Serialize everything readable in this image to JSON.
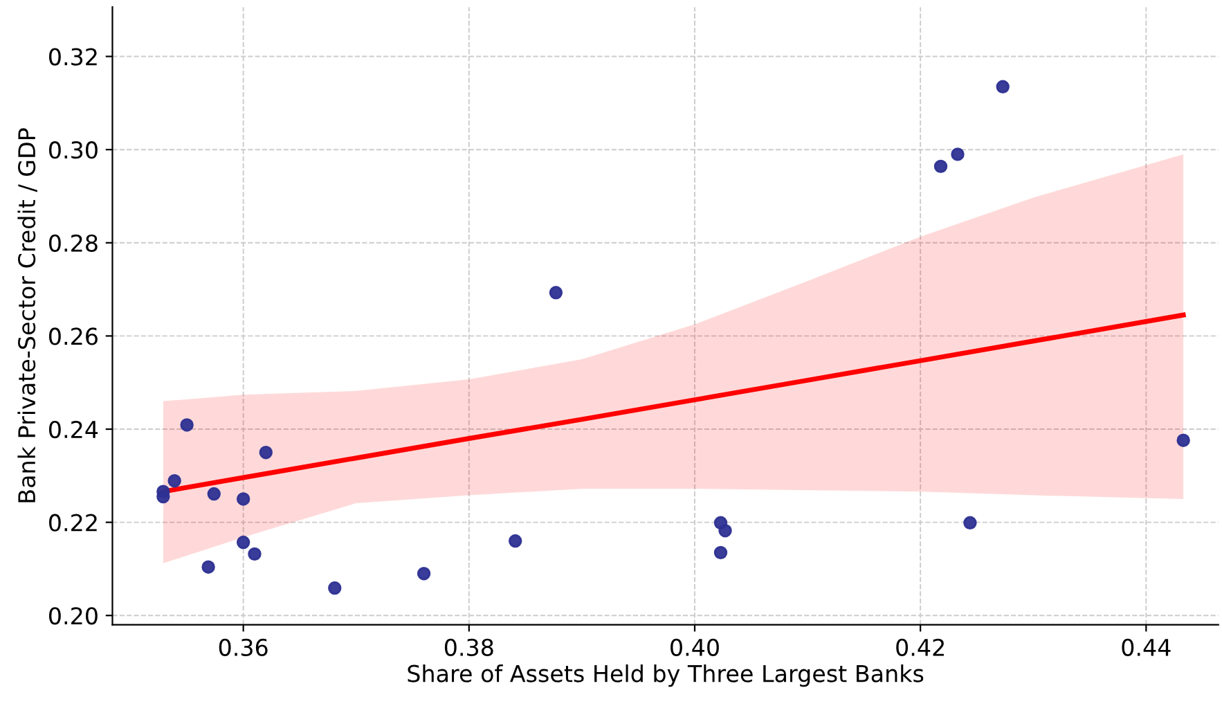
{
  "chart_data": {
    "type": "scatter",
    "xlabel": "Share of Assets Held by Three Largest Banks",
    "ylabel": "Bank Private-Sector Credit / GDP",
    "xlim": [
      0.3484,
      0.4464
    ],
    "ylim": [
      0.198,
      0.3306
    ],
    "xticks": [
      0.36,
      0.38,
      {
        "value": 0.4,
        "label": "0.40"
      },
      0.42,
      0.44
    ],
    "yticks": [
      {
        "value": 0.2,
        "label": "0.20"
      },
      0.22,
      0.24,
      0.26,
      0.28,
      {
        "value": 0.3,
        "label": "0.30"
      },
      0.32
    ],
    "grid": true,
    "series": [
      {
        "marker": "circle",
        "color": "#2e3192",
        "x": [
          0.3529,
          0.3529,
          0.3539,
          0.355,
          0.3574,
          0.36,
          0.362,
          0.36,
          0.3569,
          0.361,
          0.3681,
          0.376,
          0.3841,
          0.3877,
          0.4023,
          0.4027,
          0.4023,
          0.4218,
          0.4233,
          0.4273,
          0.4244,
          0.4433
        ],
        "values": [
          0.2255,
          0.2266,
          0.2289,
          0.2409,
          0.2261,
          0.225,
          0.235,
          0.2157,
          0.2104,
          0.2132,
          0.2059,
          0.209,
          0.216,
          0.2693,
          0.2199,
          0.2182,
          0.2135,
          0.2964,
          0.299,
          0.3135,
          0.2199,
          0.2376
        ]
      },
      {
        "type": "line",
        "marker": "none",
        "color": "#ff0000",
        "line_style": "solid",
        "x": [
          0.3529,
          0.36,
          0.37,
          0.38,
          0.39,
          0.4,
          0.41,
          0.42,
          0.43,
          0.4433
        ],
        "values": [
          0.2266,
          0.2296,
          0.2338,
          0.238,
          0.2421,
          0.2463,
          0.2505,
          0.2547,
          0.2589,
          0.2645
        ],
        "lower": [
          0.2112,
          0.2168,
          0.2241,
          0.2258,
          0.2272,
          0.2272,
          0.2269,
          0.2266,
          0.2258,
          0.225
        ],
        "upper": [
          0.246,
          0.2474,
          0.2482,
          0.2507,
          0.255,
          0.2625,
          0.2718,
          0.2813,
          0.2897,
          0.299
        ]
      }
    ]
  }
}
